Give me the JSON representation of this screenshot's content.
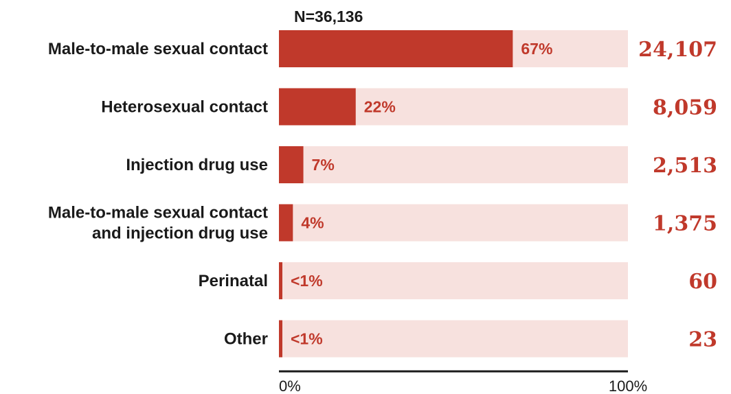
{
  "chart_data": {
    "type": "bar",
    "orientation": "horizontal",
    "total_label": "N=36,136",
    "categories": [
      [
        "Male-to-male sexual contact"
      ],
      [
        "Heterosexual contact"
      ],
      [
        "Injection drug use"
      ],
      [
        "Male-to-male sexual contact",
        "and injection drug use"
      ],
      [
        "Perinatal"
      ],
      [
        "Other"
      ]
    ],
    "values": [
      67,
      22,
      7,
      4,
      0.7,
      0.5
    ],
    "value_labels": [
      "67%",
      "22%",
      "7%",
      "4%",
      "<1%",
      "<1%"
    ],
    "counts": [
      "24,107",
      "8,059",
      "2,513",
      "1,375",
      "60",
      "23"
    ],
    "xlim": [
      0,
      100
    ],
    "x_tick_labels": [
      "0%",
      "100%"
    ],
    "colors": {
      "bar": "#c0392b",
      "track": "#f7e1de",
      "label": "#c0392b",
      "axis": "#1a1a1a"
    }
  }
}
